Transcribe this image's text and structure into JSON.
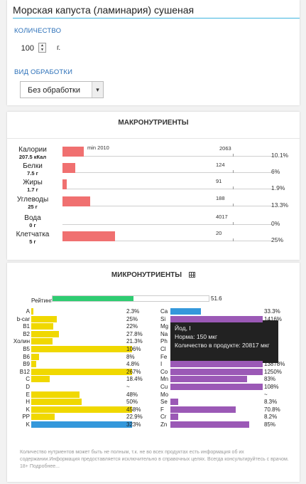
{
  "product": {
    "title": "Морская капуста (ламинария) сушеная"
  },
  "quantity": {
    "label": "КОЛИЧЕСТВО",
    "value": "100",
    "unit": "г."
  },
  "processing": {
    "label": "ВИД ОБРАБОТКИ",
    "selected": "Без обработки"
  },
  "macros": {
    "heading": "МАКРОНУТРИЕНТЫ",
    "min_label": "min 2010",
    "bar_color": "#f07070",
    "items": [
      {
        "name": "Калории",
        "amount": "207.5 кКал",
        "norm": "2063",
        "pct": "10.1%",
        "fill": 0.101
      },
      {
        "name": "Белки",
        "amount": "7.5 г",
        "norm": "124",
        "pct": "6%",
        "fill": 0.06
      },
      {
        "name": "Жиры",
        "amount": "1.7 г",
        "norm": "91",
        "pct": "1.9%",
        "fill": 0.019
      },
      {
        "name": "Углеводы",
        "amount": "25 г",
        "norm": "188",
        "pct": "13.3%",
        "fill": 0.133
      },
      {
        "name": "Вода",
        "amount": "0 г",
        "norm": "4017",
        "pct": "0%",
        "fill": 0
      },
      {
        "name": "Клетчатка",
        "amount": "5 г",
        "norm": "20",
        "pct": "25%",
        "fill": 0.25
      }
    ]
  },
  "micros": {
    "heading": "МИКРОНУТРИЕНТЫ",
    "table_icon": "table-icon",
    "rating": {
      "label": "Рейтинг",
      "value": "51.6",
      "fill": 0.516,
      "color": "#2ecc71"
    },
    "colors": {
      "yellow": "#f0d800",
      "blue": "#3498db",
      "purple": "#9b59b6"
    },
    "vitamins": [
      {
        "name": "A",
        "pct": "2.3%",
        "fill": 0.023,
        "color": "yellow"
      },
      {
        "name": "b-car",
        "pct": "25%",
        "fill": 0.25,
        "color": "yellow"
      },
      {
        "name": "B1",
        "pct": "22%",
        "fill": 0.22,
        "color": "yellow"
      },
      {
        "name": "B2",
        "pct": "27.8%",
        "fill": 0.278,
        "color": "yellow"
      },
      {
        "name": "Холин",
        "pct": "21.3%",
        "fill": 0.213,
        "color": "yellow"
      },
      {
        "name": "B5",
        "pct": "106%",
        "fill": 1,
        "color": "yellow"
      },
      {
        "name": "B6",
        "pct": "8%",
        "fill": 0.08,
        "color": "yellow"
      },
      {
        "name": "B9",
        "pct": "4.8%",
        "fill": 0.048,
        "color": "yellow"
      },
      {
        "name": "B12",
        "pct": "267%",
        "fill": 1,
        "color": "yellow"
      },
      {
        "name": "C",
        "pct": "18.4%",
        "fill": 0.184,
        "color": "yellow"
      },
      {
        "name": "D",
        "pct": "~",
        "fill": 0,
        "color": "yellow"
      },
      {
        "name": "E",
        "pct": "48%",
        "fill": 0.48,
        "color": "yellow"
      },
      {
        "name": "H",
        "pct": "50%",
        "fill": 0.5,
        "color": "yellow"
      },
      {
        "name": "K",
        "pct": "458%",
        "fill": 1,
        "color": "yellow"
      },
      {
        "name": "PP",
        "pct": "22.9%",
        "fill": 0.229,
        "color": "yellow"
      },
      {
        "name": "K",
        "pct": "323%",
        "fill": 1,
        "color": "blue"
      }
    ],
    "minerals": [
      {
        "name": "Ca",
        "pct": "33.3%",
        "fill": 0.333,
        "color": "blue"
      },
      {
        "name": "Si",
        "pct": "1416%",
        "fill": 1,
        "color": "purple"
      },
      {
        "name": "Mg",
        "pct": "",
        "fill": 0,
        "color": "purple"
      },
      {
        "name": "Na",
        "pct": "",
        "fill": 0,
        "color": "purple"
      },
      {
        "name": "Ph",
        "pct": "",
        "fill": 0,
        "color": "purple"
      },
      {
        "name": "Cl",
        "pct": "",
        "fill": 0,
        "color": "purple"
      },
      {
        "name": "Fe",
        "pct": "",
        "fill": 0,
        "color": "purple"
      },
      {
        "name": "I",
        "pct": "13878%",
        "fill": 1,
        "color": "purple"
      },
      {
        "name": "Co",
        "pct": "1250%",
        "fill": 1,
        "color": "purple"
      },
      {
        "name": "Mn",
        "pct": "83%",
        "fill": 0.83,
        "color": "purple"
      },
      {
        "name": "Cu",
        "pct": "108%",
        "fill": 1,
        "color": "purple"
      },
      {
        "name": "Mo",
        "pct": "~",
        "fill": 0,
        "color": "purple"
      },
      {
        "name": "Se",
        "pct": "8.3%",
        "fill": 0.083,
        "color": "purple"
      },
      {
        "name": "F",
        "pct": "70.8%",
        "fill": 0.708,
        "color": "purple"
      },
      {
        "name": "Cr",
        "pct": "8.2%",
        "fill": 0.082,
        "color": "purple"
      },
      {
        "name": "Zn",
        "pct": "85%",
        "fill": 0.85,
        "color": "purple"
      }
    ],
    "tooltip": {
      "title": "Йод, I",
      "norm": "Норма: 150 мкг",
      "amount": "Количество в продукте: 20817 мкг"
    }
  },
  "footnote": "Количество нутриентов может быть не полным, т.к. не во всех продуктах есть информация об их содержании.Информация предоставляется исключительно в справочных целях. Всегда консультируйтесь с врачом. 18+ Подробнее..."
}
